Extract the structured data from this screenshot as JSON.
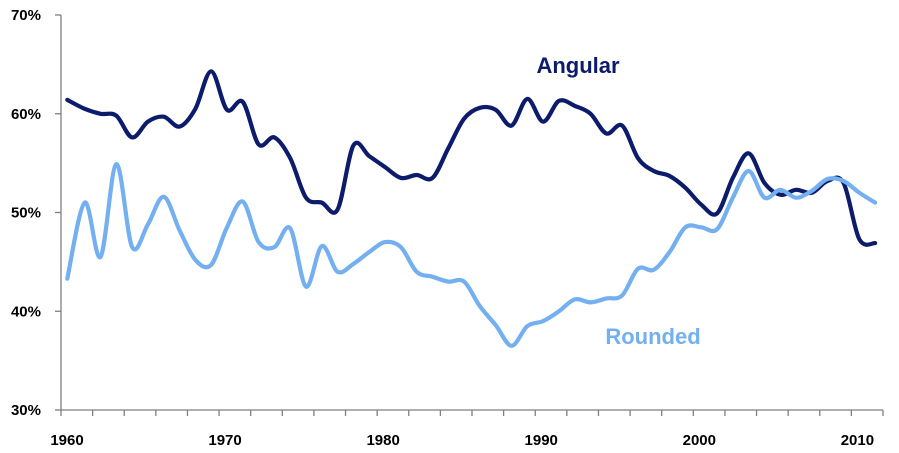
{
  "chart_data": {
    "type": "line",
    "xlim": [
      1960,
      2012
    ],
    "ylim": [
      30,
      70
    ],
    "x_ticks": [
      1960,
      1970,
      1980,
      1990,
      2000,
      2010
    ],
    "x_tick_labels": [
      "1960",
      "1970",
      "1980",
      "1990",
      "2000",
      "2010"
    ],
    "y_ticks": [
      30,
      40,
      50,
      60,
      70
    ],
    "y_tick_labels": [
      "30%",
      "40%",
      "50%",
      "60%",
      "70%"
    ],
    "grid": false,
    "legend": "none",
    "series": [
      {
        "name": "Angular",
        "color": "#0d1b6b",
        "x": [
          1960.4,
          1961.5,
          1962.5,
          1963.5,
          1964.5,
          1965.5,
          1966.5,
          1967.5,
          1968.5,
          1969.5,
          1970.5,
          1971.5,
          1972.5,
          1973.5,
          1974.5,
          1975.5,
          1976.5,
          1977.5,
          1978.5,
          1979.5,
          1980.5,
          1981.5,
          1982.5,
          1983.5,
          1984.5,
          1985.5,
          1986.5,
          1987.5,
          1988.5,
          1989.5,
          1990.5,
          1991.5,
          1992.5,
          1993.5,
          1994.5,
          1995.5,
          1996.5,
          1997.5,
          1998.5,
          1999.5,
          2000.5,
          2001.5,
          2002.5,
          2003.5,
          2004.5,
          2005.5,
          2006.5,
          2007.5,
          2008.5,
          2009.5,
          2010.5,
          2011.5
        ],
        "y": [
          61.4,
          60.5,
          60.0,
          59.8,
          57.6,
          59.2,
          59.7,
          58.7,
          60.5,
          64.3,
          60.4,
          61.2,
          56.9,
          57.6,
          55.5,
          51.5,
          51.0,
          50.3,
          56.8,
          55.7,
          54.6,
          53.5,
          53.8,
          53.5,
          56.5,
          59.5,
          60.6,
          60.4,
          58.8,
          61.5,
          59.2,
          61.3,
          60.8,
          60.0,
          58.0,
          58.8,
          55.5,
          54.2,
          53.7,
          52.5,
          50.8,
          49.9,
          53.5,
          56.0,
          53.0,
          51.8,
          52.3,
          52.0,
          53.2,
          53.0,
          47.3,
          46.9
        ]
      },
      {
        "name": "Rounded",
        "color": "#74b0f0",
        "x": [
          1960.4,
          1961.5,
          1962.5,
          1963.5,
          1964.5,
          1965.5,
          1966.5,
          1967.5,
          1968.5,
          1969.5,
          1970.5,
          1971.5,
          1972.5,
          1973.5,
          1974.5,
          1975.5,
          1976.5,
          1977.5,
          1978.5,
          1979.5,
          1980.5,
          1981.5,
          1982.5,
          1983.5,
          1984.5,
          1985.5,
          1986.5,
          1987.5,
          1988.5,
          1989.5,
          1990.5,
          1991.5,
          1992.5,
          1993.5,
          1994.5,
          1995.5,
          1996.5,
          1997.5,
          1998.5,
          1999.5,
          2000.5,
          2001.5,
          2002.5,
          2003.5,
          2004.5,
          2005.5,
          2006.5,
          2007.5,
          2008.5,
          2009.5,
          2010.5,
          2011.5
        ],
        "y": [
          43.3,
          51.0,
          45.5,
          54.9,
          46.5,
          48.8,
          51.6,
          48.2,
          45.2,
          44.7,
          48.5,
          51.1,
          47.0,
          46.5,
          48.4,
          42.5,
          46.6,
          44.0,
          44.8,
          46.0,
          47.0,
          46.5,
          44.0,
          43.5,
          43.0,
          43.0,
          40.5,
          38.6,
          36.5,
          38.5,
          39.0,
          40.0,
          41.2,
          40.9,
          41.3,
          41.6,
          44.3,
          44.2,
          46.0,
          48.5,
          48.5,
          48.3,
          51.5,
          54.2,
          51.5,
          52.3,
          51.5,
          52.2,
          53.4,
          53.2,
          52.0,
          51.0
        ]
      }
    ]
  }
}
